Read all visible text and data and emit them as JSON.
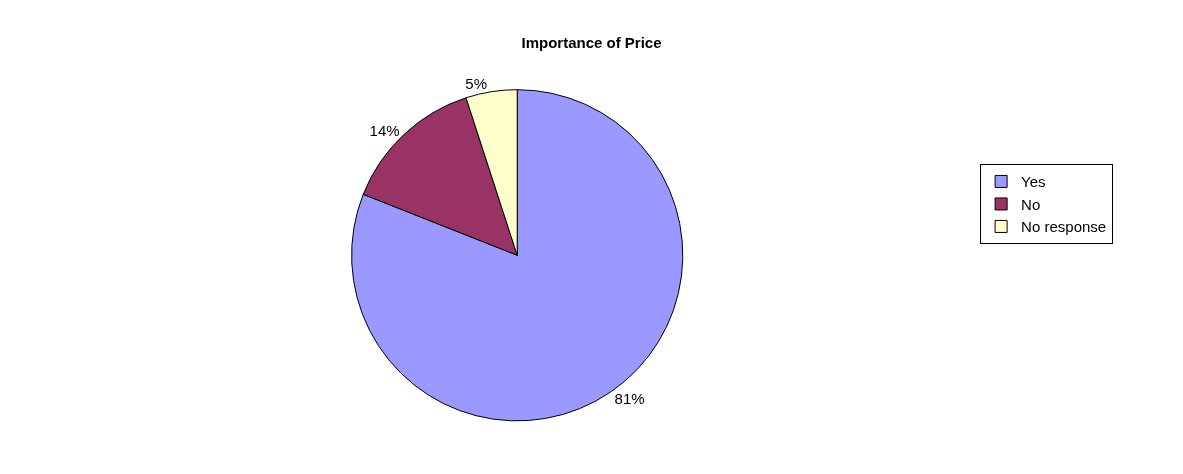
{
  "chart_data": {
    "type": "pie",
    "title": "Importance of Price",
    "categories": [
      "Yes",
      "No",
      "No response"
    ],
    "values": [
      81,
      14,
      5
    ],
    "colors": [
      "#9999ff",
      "#993366",
      "#ffffcc"
    ],
    "value_labels": [
      "81%",
      "14%",
      "5%"
    ],
    "legend": "right"
  }
}
